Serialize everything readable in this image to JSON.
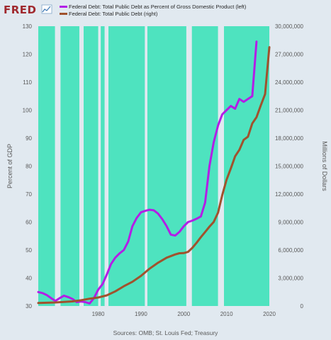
{
  "logo": {
    "text": "FRED"
  },
  "chart_data": {
    "type": "line",
    "legend_position": "top-left",
    "grid": false,
    "series": [
      {
        "name": "Federal Debt: Total Public Debt as Percent of Gross Domestic Product (left)",
        "axis": "left",
        "color": "#b31ee6",
        "points": [
          [
            1966,
            35
          ],
          [
            1967,
            34.6
          ],
          [
            1968,
            33.9
          ],
          [
            1969,
            32.8
          ],
          [
            1970,
            31.8
          ],
          [
            1971,
            32.8
          ],
          [
            1972,
            33.7
          ],
          [
            1973,
            33.2
          ],
          [
            1974,
            32.5
          ],
          [
            1975,
            31.4
          ],
          [
            1976,
            31.6
          ],
          [
            1977,
            31.4
          ],
          [
            1978,
            30.9
          ],
          [
            1979,
            32.8
          ],
          [
            1980,
            35.8
          ],
          [
            1981,
            37.8
          ],
          [
            1982,
            41.2
          ],
          [
            1983,
            45
          ],
          [
            1984,
            47.3
          ],
          [
            1985,
            48.8
          ],
          [
            1986,
            50
          ],
          [
            1987,
            53
          ],
          [
            1988,
            58.5
          ],
          [
            1989,
            61.5
          ],
          [
            1990,
            63.5
          ],
          [
            1991,
            64
          ],
          [
            1992,
            64.4
          ],
          [
            1993,
            64.2
          ],
          [
            1994,
            63
          ],
          [
            1995,
            61
          ],
          [
            1996,
            58.5
          ],
          [
            1997,
            55.5
          ],
          [
            1998,
            55.2
          ],
          [
            1999,
            56.5
          ],
          [
            2000,
            58.5
          ],
          [
            2001,
            60
          ],
          [
            2002,
            60.5
          ],
          [
            2003,
            61.2
          ],
          [
            2004,
            62
          ],
          [
            2005,
            67
          ],
          [
            2006,
            80
          ],
          [
            2007,
            88.5
          ],
          [
            2008,
            94.5
          ],
          [
            2009,
            98.5
          ],
          [
            2010,
            100
          ],
          [
            2011,
            101.5
          ],
          [
            2012,
            100.5
          ],
          [
            2013,
            104
          ],
          [
            2014,
            103
          ],
          [
            2015,
            104
          ],
          [
            2016,
            105
          ],
          [
            2017,
            124.5
          ]
        ]
      },
      {
        "name": "Federal Debt: Total Public Debt (right)",
        "axis": "right",
        "color": "#a0522d",
        "points": [
          [
            1966,
            320000
          ],
          [
            1968,
            350000
          ],
          [
            1970,
            380000
          ],
          [
            1972,
            430000
          ],
          [
            1974,
            490000
          ],
          [
            1976,
            620000
          ],
          [
            1978,
            780000
          ],
          [
            1980,
            910000
          ],
          [
            1982,
            1140000
          ],
          [
            1984,
            1570000
          ],
          [
            1986,
            2120000
          ],
          [
            1988,
            2600000
          ],
          [
            1990,
            3230000
          ],
          [
            1992,
            4000000
          ],
          [
            1994,
            4640000
          ],
          [
            1996,
            5180000
          ],
          [
            1998,
            5530000
          ],
          [
            1999,
            5660000
          ],
          [
            2000,
            5670000
          ],
          [
            2001,
            5800000
          ],
          [
            2002,
            6230000
          ],
          [
            2003,
            6780000
          ],
          [
            2004,
            7380000
          ],
          [
            2005,
            7930000
          ],
          [
            2006,
            8510000
          ],
          [
            2007,
            9010000
          ],
          [
            2008,
            10000000
          ],
          [
            2009,
            11900000
          ],
          [
            2010,
            13530000
          ],
          [
            2011,
            14760000
          ],
          [
            2012,
            16050000
          ],
          [
            2013,
            16740000
          ],
          [
            2014,
            17820000
          ],
          [
            2015,
            18150000
          ],
          [
            2016,
            19570000
          ],
          [
            2017,
            20240000
          ],
          [
            2018,
            21500000
          ],
          [
            2019,
            22720000
          ],
          [
            2020,
            27750000
          ]
        ]
      }
    ],
    "shaded_periods": [
      [
        1966,
        1969.9
      ],
      [
        1971.2,
        1975.6
      ],
      [
        1976.6,
        1980
      ],
      [
        1980.6,
        1981.5
      ],
      [
        1982.4,
        1990.9
      ],
      [
        1991.5,
        2000.6
      ],
      [
        2001.9,
        2008
      ],
      [
        2009.4,
        2020
      ]
    ],
    "shade_color": "#4ee3bf",
    "x_axis": {
      "min": 1966,
      "max": 2020,
      "ticks": [
        "1980",
        "1990",
        "2000",
        "2010",
        "2020"
      ],
      "tick_values": [
        1980,
        1990,
        2000,
        2010,
        2020
      ]
    },
    "y_left": {
      "title": "Percent of GDP",
      "min": 30,
      "max": 130,
      "ticks": [
        "30",
        "40",
        "50",
        "60",
        "70",
        "80",
        "90",
        "100",
        "110",
        "120",
        "130"
      ],
      "tick_values": [
        30,
        40,
        50,
        60,
        70,
        80,
        90,
        100,
        110,
        120,
        130
      ]
    },
    "y_right": {
      "title": "Millions of Dollars",
      "min": 0,
      "max": 30000000,
      "ticks": [
        "0",
        "3,000,000",
        "6,000,000",
        "9,000,000",
        "12,000,000",
        "15,000,000",
        "18,000,000",
        "21,000,000",
        "24,000,000",
        "27,000,000",
        "30,000,000"
      ],
      "tick_values": [
        0,
        3000000,
        6000000,
        9000000,
        12000000,
        15000000,
        18000000,
        21000000,
        24000000,
        27000000,
        30000000
      ]
    },
    "source_note": "Sources: OMB; St. Louis Fed; Treasury"
  }
}
